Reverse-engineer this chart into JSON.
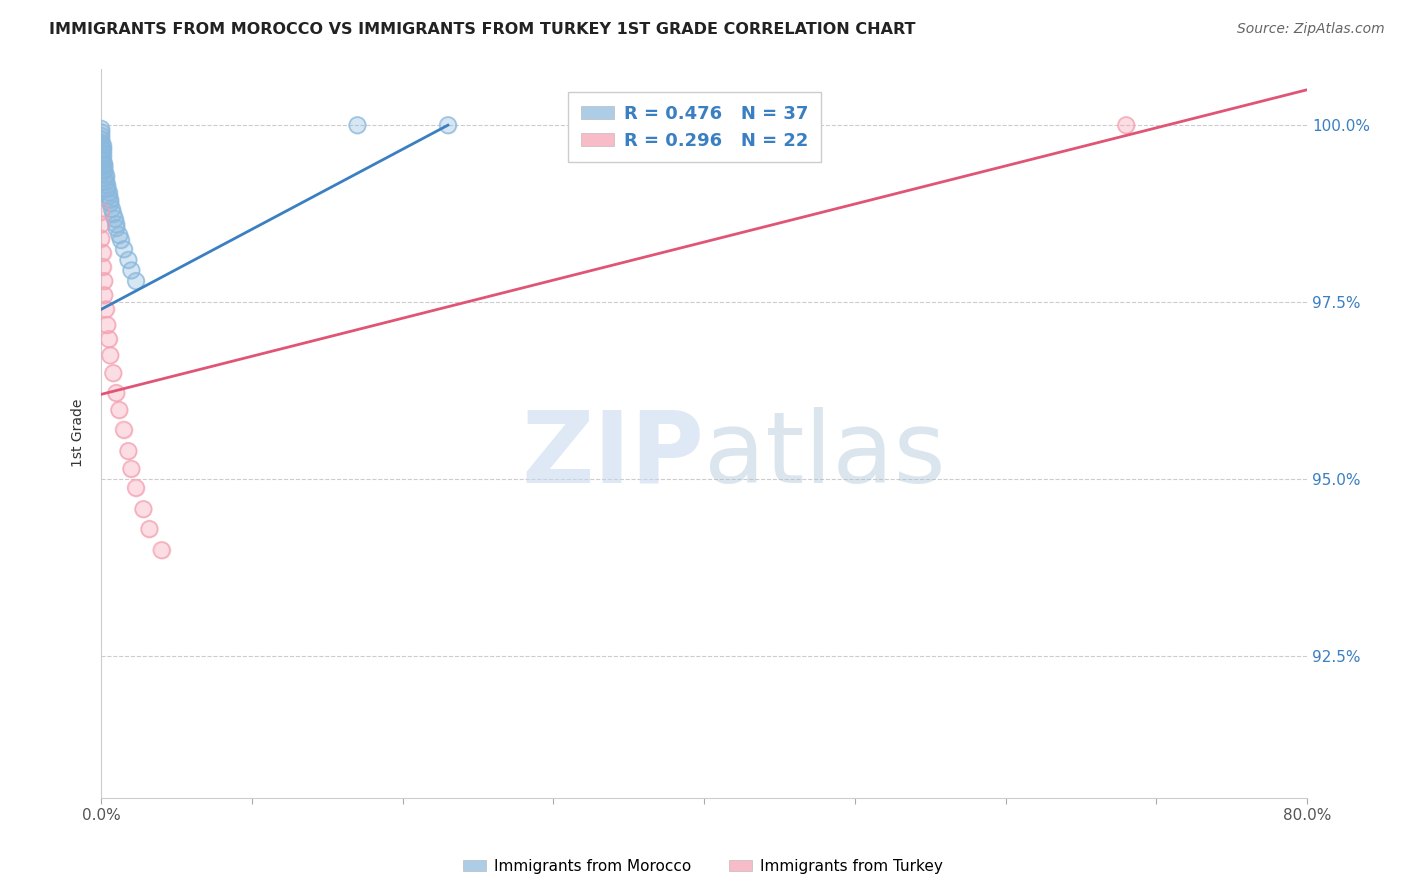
{
  "title": "IMMIGRANTS FROM MOROCCO VS IMMIGRANTS FROM TURKEY 1ST GRADE CORRELATION CHART",
  "source": "Source: ZipAtlas.com",
  "ylabel": "1st Grade",
  "xlim": [
    0.0,
    0.8
  ],
  "ylim": [
    0.905,
    1.008
  ],
  "x_ticks": [
    0.0,
    0.1,
    0.2,
    0.3,
    0.4,
    0.5,
    0.6,
    0.7,
    0.8
  ],
  "x_tick_labels": [
    "0.0%",
    "",
    "",
    "",
    "",
    "",
    "",
    "",
    "80.0%"
  ],
  "y_ticks": [
    0.925,
    0.95,
    0.975,
    1.0
  ],
  "y_tick_labels": [
    "92.5%",
    "95.0%",
    "97.5%",
    "100.0%"
  ],
  "morocco_R": 0.476,
  "morocco_N": 37,
  "turkey_R": 0.296,
  "turkey_N": 22,
  "morocco_color": "#8ab8dc",
  "turkey_color": "#f4a0b0",
  "morocco_line_color": "#3a7fc1",
  "turkey_line_color": "#e05575",
  "watermark_zip": "ZIP",
  "watermark_atlas": "atlas",
  "morocco_x": [
    0.0,
    0.0,
    0.0,
    0.0,
    0.0,
    0.001,
    0.001,
    0.001,
    0.001,
    0.001,
    0.001,
    0.002,
    0.002,
    0.002,
    0.002,
    0.003,
    0.003,
    0.003,
    0.004,
    0.004,
    0.005,
    0.005,
    0.006,
    0.006,
    0.007,
    0.008,
    0.009,
    0.01,
    0.01,
    0.012,
    0.013,
    0.015,
    0.018,
    0.02,
    0.023,
    0.17,
    0.23
  ],
  "morocco_y": [
    0.999,
    0.9985,
    0.998,
    0.9975,
    0.9995,
    0.9972,
    0.9968,
    0.9965,
    0.996,
    0.9955,
    0.995,
    0.9945,
    0.9942,
    0.9938,
    0.9935,
    0.993,
    0.9925,
    0.992,
    0.9915,
    0.991,
    0.9905,
    0.99,
    0.9895,
    0.989,
    0.9882,
    0.9875,
    0.9868,
    0.986,
    0.9855,
    0.9845,
    0.9838,
    0.9825,
    0.981,
    0.9795,
    0.978,
    1.0,
    1.0
  ],
  "turkey_x": [
    0.0,
    0.0,
    0.0,
    0.001,
    0.001,
    0.002,
    0.002,
    0.003,
    0.004,
    0.005,
    0.006,
    0.008,
    0.01,
    0.012,
    0.015,
    0.018,
    0.02,
    0.023,
    0.028,
    0.032,
    0.04,
    0.68
  ],
  "turkey_y": [
    0.9878,
    0.986,
    0.984,
    0.982,
    0.98,
    0.978,
    0.976,
    0.974,
    0.9718,
    0.9698,
    0.9675,
    0.965,
    0.9622,
    0.9598,
    0.957,
    0.954,
    0.9515,
    0.9488,
    0.9458,
    0.943,
    0.94,
    1.0
  ],
  "morocco_line_x0": 0.0,
  "morocco_line_y0": 0.974,
  "morocco_line_x1": 0.23,
  "morocco_line_y1": 1.0,
  "turkey_line_x0": 0.0,
  "turkey_line_y0": 0.962,
  "turkey_line_x1": 0.8,
  "turkey_line_y1": 1.005
}
